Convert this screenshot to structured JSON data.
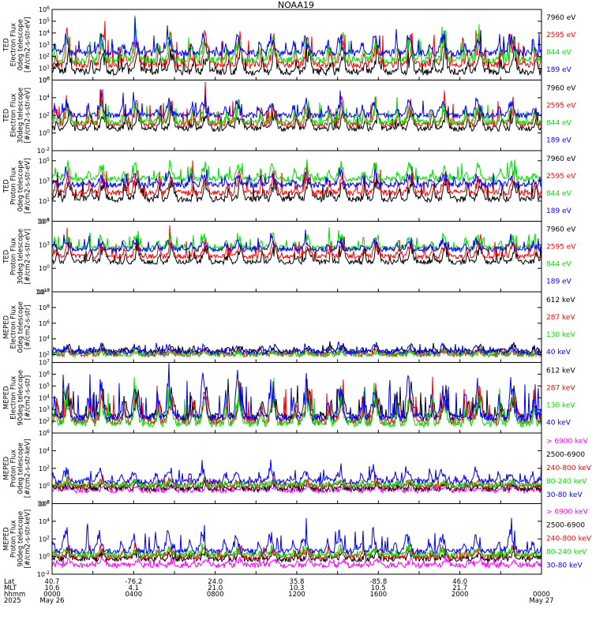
{
  "title": "NOAA19",
  "colors": {
    "black": "#000000",
    "red": "#ff0000",
    "green": "#00e000",
    "blue": "#0000ff",
    "magenta": "#ff00ff"
  },
  "chart_data": [
    {
      "type": "line",
      "ylabel": [
        "TED",
        "Electron Flux",
        "0deg telescope",
        "[#/cm2-s-str-eV]"
      ],
      "yscale": "log",
      "ylim_exp": [
        0,
        6
      ],
      "tick_labels": [
        "10^0",
        "10^1",
        "10^2",
        "10^3",
        "10^4",
        "10^5",
        "10^6"
      ],
      "legend": [
        {
          "label": "7960 eV",
          "color": "black"
        },
        {
          "label": "2595 eV",
          "color": "red"
        },
        {
          "label": "844 eV",
          "color": "green"
        },
        {
          "label": "189 eV",
          "color": "blue"
        }
      ],
      "series": [
        {
          "name": "7960 eV",
          "color": "black",
          "base": 0.7,
          "spread": 1.2
        },
        {
          "name": "2595 eV",
          "color": "red",
          "base": 1.3,
          "spread": 1.6
        },
        {
          "name": "844 eV",
          "color": "green",
          "base": 1.7,
          "spread": 1.4
        },
        {
          "name": "189 eV",
          "color": "blue",
          "base": 2.3,
          "spread": 1.0
        }
      ]
    },
    {
      "type": "line",
      "ylabel": [
        "TED",
        "Electron Flux",
        "30deg telescope",
        "[#/cm2-s-str-eV]"
      ],
      "yscale": "log",
      "ylim_exp": [
        -2,
        6
      ],
      "tick_labels": [
        "10^-2",
        "10^0",
        "10^2",
        "10^4",
        "10^6"
      ],
      "legend": [
        {
          "label": "7960 eV",
          "color": "black"
        },
        {
          "label": "2595 eV",
          "color": "red"
        },
        {
          "label": "844 eV",
          "color": "green"
        },
        {
          "label": "189 eV",
          "color": "blue"
        }
      ],
      "series": [
        {
          "name": "7960 eV",
          "color": "black",
          "base": 0.5,
          "spread": 1.2
        },
        {
          "name": "2595 eV",
          "color": "red",
          "base": 1.0,
          "spread": 1.8
        },
        {
          "name": "844 eV",
          "color": "green",
          "base": 1.2,
          "spread": 1.4
        },
        {
          "name": "189 eV",
          "color": "blue",
          "base": 2.0,
          "spread": 1.2
        }
      ]
    },
    {
      "type": "line",
      "ylabel": [
        "TED",
        "Proton Flux",
        "0deg telescope",
        "[#/cm2-s-str-eV]"
      ],
      "yscale": "log",
      "ylim_exp": [
        -1,
        6
      ],
      "tick_labels": [
        "10^-1",
        "10^1",
        "10^3",
        "10^5"
      ],
      "legend": [
        {
          "label": "7960 eV",
          "color": "black"
        },
        {
          "label": "2595 eV",
          "color": "red"
        },
        {
          "label": "844 eV",
          "color": "green"
        },
        {
          "label": "189 eV",
          "color": "blue"
        }
      ],
      "series": [
        {
          "name": "7960 eV",
          "color": "black",
          "base": 1.2,
          "spread": 1.4
        },
        {
          "name": "2595 eV",
          "color": "red",
          "base": 1.8,
          "spread": 1.3
        },
        {
          "name": "844 eV",
          "color": "green",
          "base": 3.2,
          "spread": 1.0
        },
        {
          "name": "189 eV",
          "color": "blue",
          "base": 2.6,
          "spread": 0.7
        }
      ]
    },
    {
      "type": "line",
      "ylabel": [
        "TED",
        "Proton Flux",
        "30deg telescope",
        "[#/cm2-s-str-eV]"
      ],
      "yscale": "log",
      "ylim_exp": [
        -3,
        6
      ],
      "tick_labels": [
        "10^-3",
        "10^0",
        "10^3",
        "10^6"
      ],
      "legend": [
        {
          "label": "7960 eV",
          "color": "black"
        },
        {
          "label": "2595 eV",
          "color": "red"
        },
        {
          "label": "844 eV",
          "color": "green"
        },
        {
          "label": "189 eV",
          "color": "blue"
        }
      ],
      "series": [
        {
          "name": "7960 eV",
          "color": "black",
          "base": 0.8,
          "spread": 1.4
        },
        {
          "name": "2595 eV",
          "color": "red",
          "base": 1.5,
          "spread": 1.3
        },
        {
          "name": "844 eV",
          "color": "green",
          "base": 2.6,
          "spread": 1.1
        },
        {
          "name": "189 eV",
          "color": "blue",
          "base": 2.4,
          "spread": 0.9
        }
      ]
    },
    {
      "type": "line",
      "ylabel": [
        "MEPED",
        "Electron Flux",
        "0deg telescope",
        "[#/cm2-s-str]"
      ],
      "yscale": "log",
      "ylim_exp": [
        1,
        10
      ],
      "tick_labels": [
        "10^2",
        "10^4",
        "10^6",
        "10^8",
        "10^10"
      ],
      "legend": [
        {
          "label": "612 keV",
          "color": "black"
        },
        {
          "label": "287 keV",
          "color": "red"
        },
        {
          "label": "130 keV",
          "color": "green"
        },
        {
          "label": "40 keV",
          "color": "blue"
        }
      ],
      "series": [
        {
          "name": "612 keV",
          "color": "black",
          "base": 2.4,
          "spread": 0.5
        },
        {
          "name": "287 keV",
          "color": "red",
          "base": 2.0,
          "spread": 0.4
        },
        {
          "name": "130 keV",
          "color": "green",
          "base": 2.0,
          "spread": 0.3
        },
        {
          "name": "40 keV",
          "color": "blue",
          "base": 2.3,
          "spread": 0.6
        }
      ]
    },
    {
      "type": "line",
      "ylabel": [
        "MEPED",
        "Electron Flux",
        "90deg telescope",
        "[#/cm2-s-str]"
      ],
      "yscale": "log",
      "ylim_exp": [
        1,
        7
      ],
      "tick_labels": [
        "10^2",
        "10^3",
        "10^4",
        "10^5",
        "10^6",
        "10^7"
      ],
      "legend": [
        {
          "label": "612 keV",
          "color": "black"
        },
        {
          "label": "287 keV",
          "color": "red"
        },
        {
          "label": "130 keV",
          "color": "green"
        },
        {
          "label": "40 keV",
          "color": "blue"
        }
      ],
      "series": [
        {
          "name": "612 keV",
          "color": "black",
          "base": 2.4,
          "spread": 1.6
        },
        {
          "name": "287 keV",
          "color": "red",
          "base": 2.0,
          "spread": 1.8
        },
        {
          "name": "130 keV",
          "color": "green",
          "base": 1.8,
          "spread": 1.9
        },
        {
          "name": "40 keV",
          "color": "blue",
          "base": 2.3,
          "spread": 2.2
        }
      ]
    },
    {
      "type": "line",
      "ylabel": [
        "MEPED",
        "Proton Flux",
        "0deg telescope",
        "[#/cm2-s-str-keV]"
      ],
      "yscale": "log",
      "ylim_exp": [
        -2,
        6
      ],
      "tick_labels": [
        "10^-2",
        "10^0",
        "10^2",
        "10^4",
        "10^6"
      ],
      "legend": [
        {
          "label": "> 6900 keV",
          "color": "magenta"
        },
        {
          "label": "2500-6900",
          "color": "black"
        },
        {
          "label": "240-800 keV",
          "color": "red"
        },
        {
          "label": "80-240 keV",
          "color": "green"
        },
        {
          "label": "30-80 keV",
          "color": "blue"
        }
      ],
      "series": [
        {
          "name": "> 6900 keV",
          "color": "magenta",
          "base": -0.5,
          "spread": 0.3
        },
        {
          "name": "2500-6900",
          "color": "black",
          "base": -0.3,
          "spread": 0.4
        },
        {
          "name": "240-800 keV",
          "color": "red",
          "base": 0.0,
          "spread": 0.5
        },
        {
          "name": "80-240 keV",
          "color": "green",
          "base": 0.1,
          "spread": 0.3
        },
        {
          "name": "30-80 keV",
          "color": "blue",
          "base": 0.5,
          "spread": 1.0
        }
      ]
    },
    {
      "type": "line",
      "ylabel": [
        "MEPED",
        "Proton Flux",
        "90deg telescope",
        "[#/cm2-s-str-keV]"
      ],
      "yscale": "log",
      "ylim_exp": [
        -2,
        6
      ],
      "tick_labels": [
        "10^-2",
        "10^0",
        "10^2",
        "10^4",
        "10^6"
      ],
      "legend": [
        {
          "label": "> 6900 keV",
          "color": "magenta"
        },
        {
          "label": "2500-6900",
          "color": "black"
        },
        {
          "label": "240-800 keV",
          "color": "red"
        },
        {
          "label": "80-240 keV",
          "color": "green"
        },
        {
          "label": "30-80 keV",
          "color": "blue"
        }
      ],
      "series": [
        {
          "name": "> 6900 keV",
          "color": "magenta",
          "base": -1.0,
          "spread": 0.5
        },
        {
          "name": "2500-6900",
          "color": "black",
          "base": -0.3,
          "spread": 0.6
        },
        {
          "name": "240-800 keV",
          "color": "red",
          "base": 0.0,
          "spread": 0.7
        },
        {
          "name": "80-240 keV",
          "color": "green",
          "base": 0.2,
          "spread": 0.5
        },
        {
          "name": "30-80 keV",
          "color": "blue",
          "base": 0.6,
          "spread": 1.4
        }
      ]
    }
  ],
  "x_axis": {
    "row_labels": [
      "Lat",
      "MLT",
      "hhmm",
      "2025"
    ],
    "columns": [
      {
        "lat": "40.7",
        "mlt": "10.6",
        "hhmm": "0000",
        "date": "May 26"
      },
      {
        "lat": "-76.2",
        "mlt": "4.1",
        "hhmm": "0400",
        "date": ""
      },
      {
        "lat": "24.0",
        "mlt": "21.0",
        "hhmm": "0800",
        "date": ""
      },
      {
        "lat": "35.8",
        "mlt": "10.3",
        "hhmm": "1200",
        "date": ""
      },
      {
        "lat": "-85.8",
        "mlt": "10.5",
        "hhmm": "1600",
        "date": ""
      },
      {
        "lat": "46.0",
        "mlt": "21.7",
        "hhmm": "2000",
        "date": ""
      },
      {
        "lat": "",
        "mlt": "",
        "hhmm": "0000",
        "date": "May 27"
      }
    ]
  }
}
